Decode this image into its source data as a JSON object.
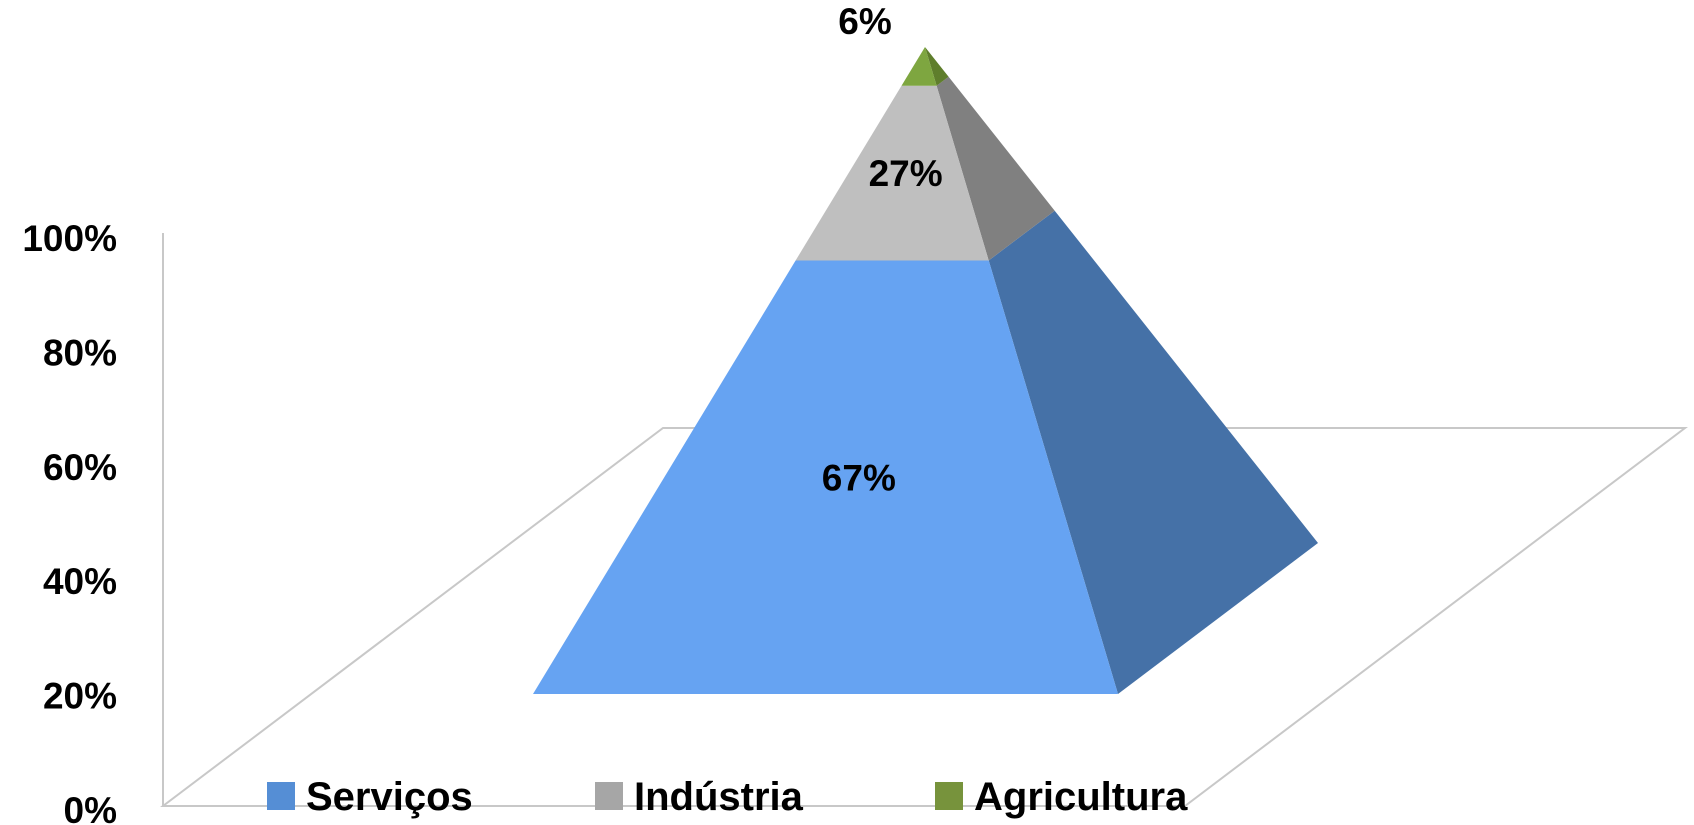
{
  "chart_data": {
    "type": "pyramid",
    "stacked": true,
    "categories": [
      "Serviços",
      "Indústria",
      "Agricultura"
    ],
    "values": [
      67,
      27,
      6
    ],
    "value_format": "percent",
    "data_labels": [
      "67%",
      "27%",
      "6%"
    ],
    "y_axis": {
      "ylim": [
        0,
        100
      ],
      "tick_labels": [
        "0%",
        "20%",
        "40%",
        "60%",
        "80%",
        "100%"
      ]
    },
    "legend": {
      "position": "bottom",
      "entries": [
        {
          "label": "Serviços",
          "color": "#558ed5"
        },
        {
          "label": "Indústria",
          "color": "#a6a6a6"
        },
        {
          "label": "Agricultura",
          "color": "#77933c"
        }
      ]
    },
    "colors": {
      "Serviços": {
        "front": "#66a3f2",
        "side": "#4571a7"
      },
      "Indústria": {
        "front": "#bfbfbf",
        "side": "#808080"
      },
      "Agricultura": {
        "front": "#7ea640",
        "side": "#5f7e2c"
      }
    },
    "title": "",
    "xlabel": "",
    "ylabel": ""
  }
}
